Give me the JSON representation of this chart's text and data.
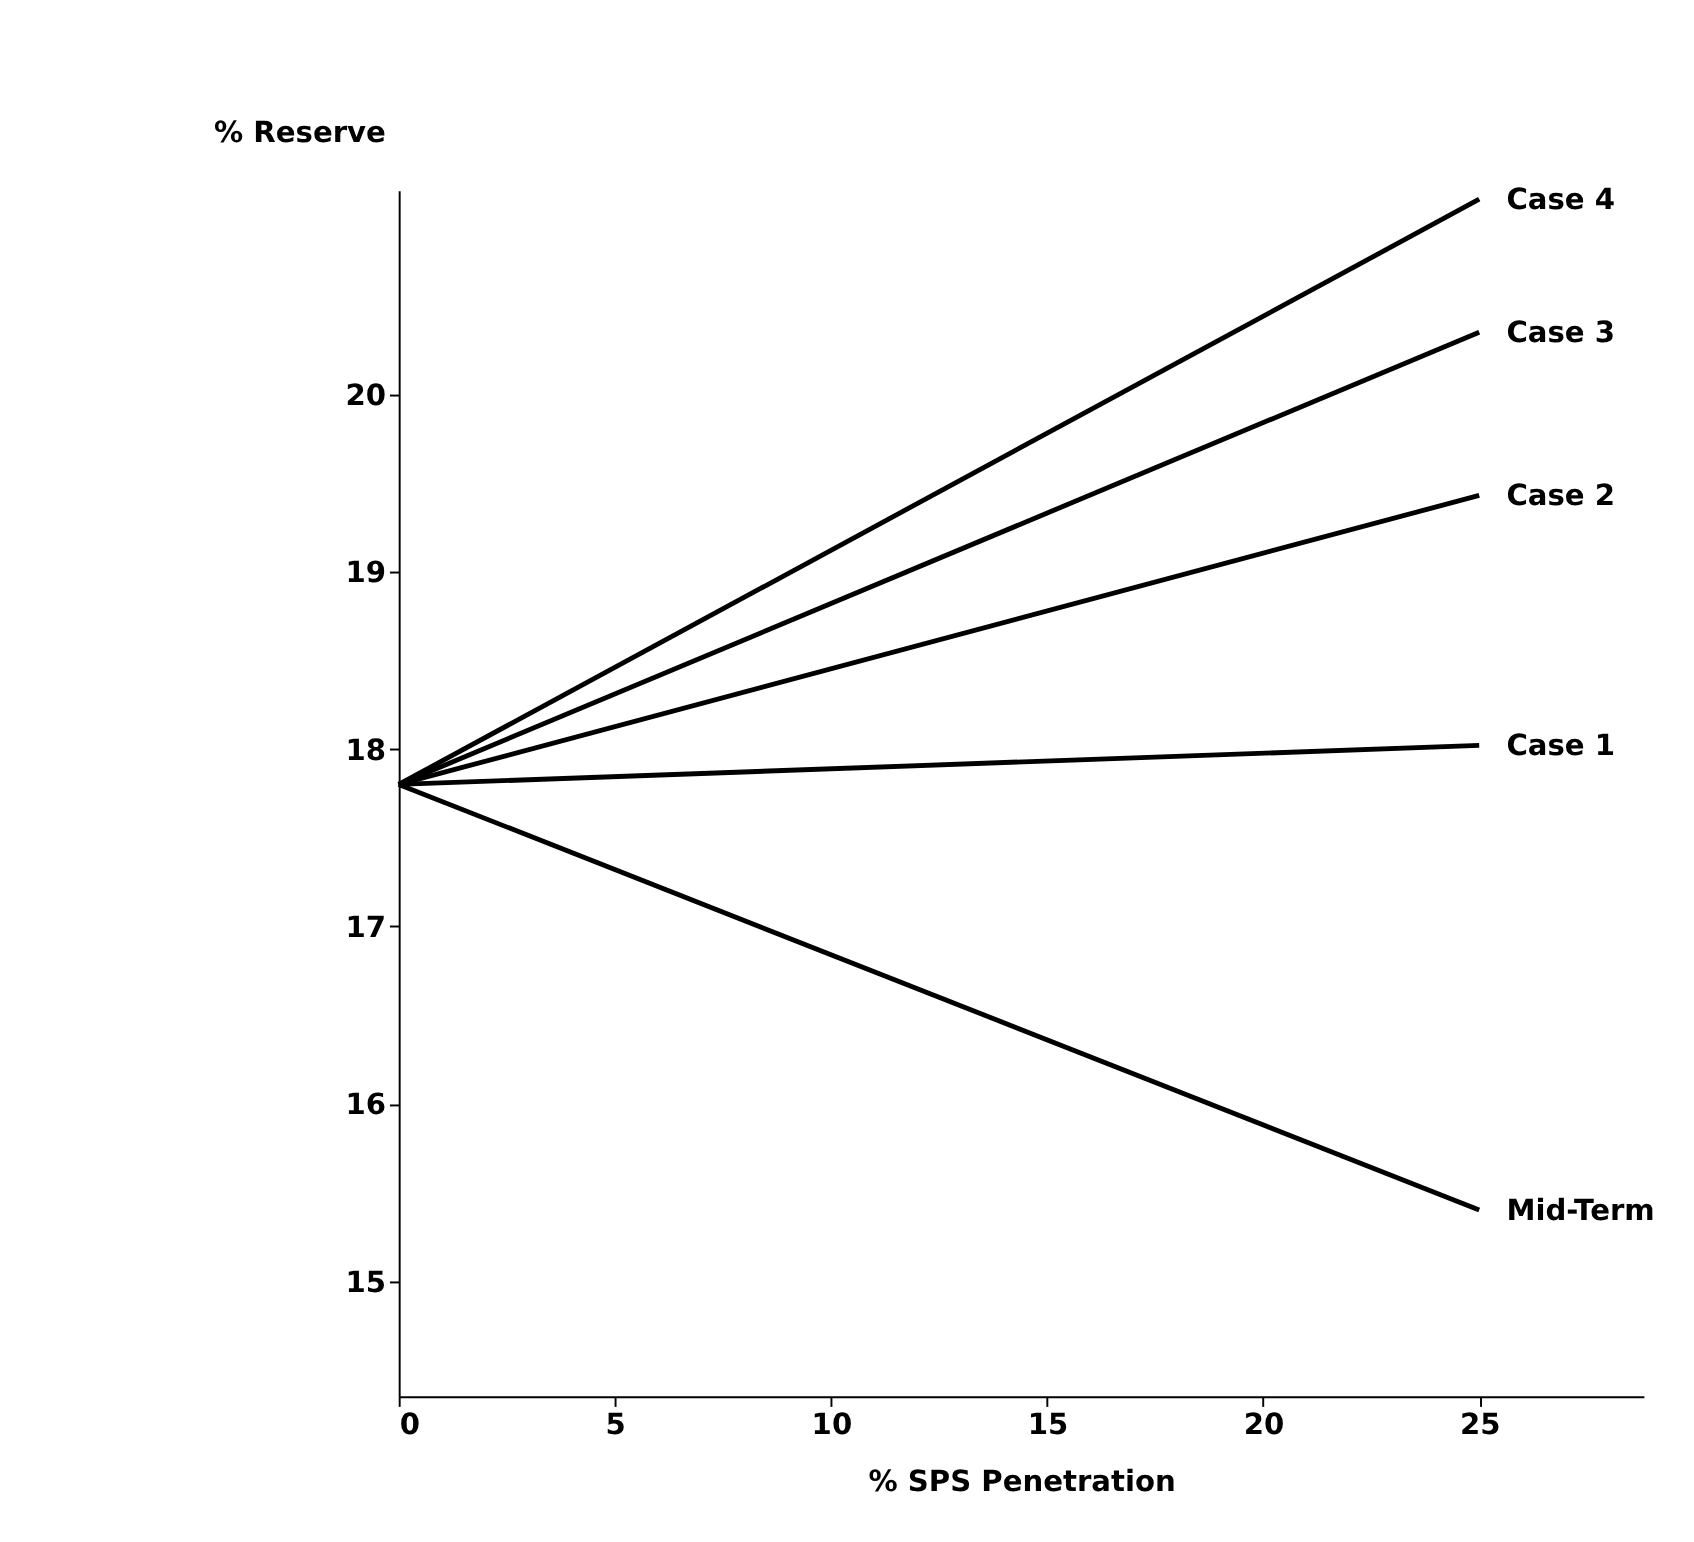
{
  "chart_data": {
    "type": "line",
    "xlabel": "% SPS Penetration",
    "ylabel": "% Reserve",
    "x": [
      0,
      25
    ],
    "series": [
      {
        "name": "Case 4",
        "color": "#000000",
        "values": [
          17.8,
          21.1
        ]
      },
      {
        "name": "Case 3",
        "color": "#000000",
        "values": [
          17.8,
          20.35
        ]
      },
      {
        "name": "Case 2",
        "color": "#000000",
        "values": [
          17.8,
          19.43
        ]
      },
      {
        "name": "Case 1",
        "color": "#000000",
        "values": [
          17.8,
          18.02
        ]
      },
      {
        "name": "Mid-Term",
        "color": "#000000",
        "values": [
          17.8,
          15.4
        ]
      }
    ],
    "xlim": [
      0,
      28.8
    ],
    "xticks": [
      0,
      5,
      10,
      15,
      20,
      25
    ],
    "ylim": [
      14.35,
      21.15
    ],
    "yticks": [
      15,
      16,
      17,
      18,
      19,
      20
    ],
    "grid": false,
    "legend": false,
    "marker": "none",
    "line_style": "solid"
  }
}
